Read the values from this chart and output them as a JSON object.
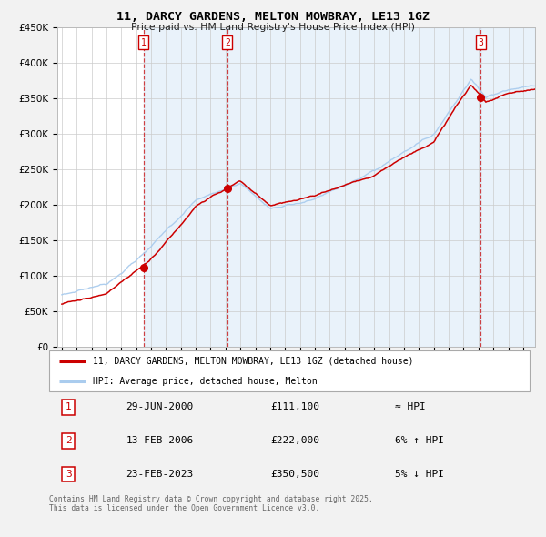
{
  "title": "11, DARCY GARDENS, MELTON MOWBRAY, LE13 1GZ",
  "subtitle": "Price paid vs. HM Land Registry's House Price Index (HPI)",
  "property_label": "11, DARCY GARDENS, MELTON MOWBRAY, LE13 1GZ (detached house)",
  "hpi_label": "HPI: Average price, detached house, Melton",
  "property_color": "#cc0000",
  "hpi_color": "#aaccee",
  "plot_bg_color": "#ffffff",
  "fig_bg_color": "#f2f2f2",
  "grid_color": "#cccccc",
  "ylim": [
    0,
    450000
  ],
  "yticks": [
    0,
    50000,
    100000,
    150000,
    200000,
    250000,
    300000,
    350000,
    400000,
    450000
  ],
  "xlim_start": 1994.7,
  "xlim_end": 2026.8,
  "sale_dates": [
    2000.49,
    2006.12,
    2023.15
  ],
  "sale_prices": [
    111100,
    222000,
    350500
  ],
  "sale_labels": [
    "1",
    "2",
    "3"
  ],
  "table_rows": [
    {
      "num": "1",
      "date": "29-JUN-2000",
      "price": "£111,100",
      "relation": "≈ HPI"
    },
    {
      "num": "2",
      "date": "13-FEB-2006",
      "price": "£222,000",
      "relation": "6% ↑ HPI"
    },
    {
      "num": "3",
      "date": "23-FEB-2023",
      "price": "£350,500",
      "relation": "5% ↓ HPI"
    }
  ],
  "footer": "Contains HM Land Registry data © Crown copyright and database right 2025.\nThis data is licensed under the Open Government Licence v3.0.",
  "footnote_color": "#666666"
}
